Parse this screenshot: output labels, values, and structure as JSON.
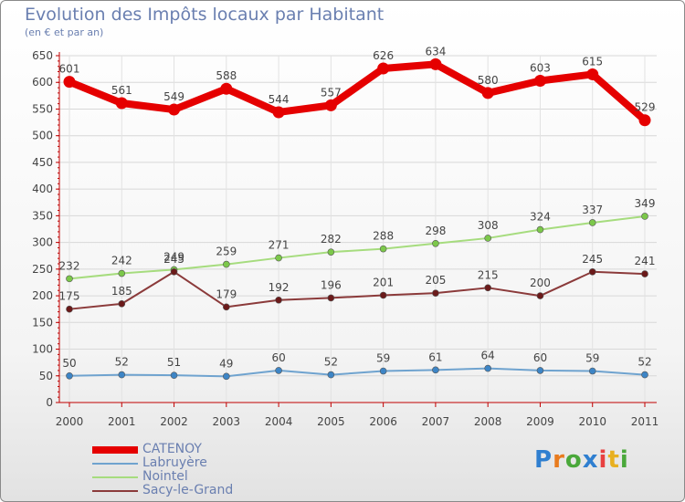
{
  "chart_data": {
    "type": "line",
    "title": "Evolution des Impôts locaux par Habitant",
    "subtitle": "(en € et par an)",
    "xlabel": "",
    "ylabel": "",
    "ylim": [
      0,
      650
    ],
    "y_ticks": [
      0,
      50,
      100,
      150,
      200,
      250,
      300,
      350,
      400,
      450,
      500,
      550,
      600,
      650
    ],
    "grid": true,
    "legend_position": "bottom-left",
    "x": [
      "2000",
      "2001",
      "2002",
      "2003",
      "2004",
      "2005",
      "2006",
      "2007",
      "2008",
      "2009",
      "2010",
      "2011"
    ],
    "series": [
      {
        "name": "CATENOY",
        "color": "#e50000",
        "values": [
          601,
          561,
          549,
          588,
          544,
          557,
          626,
          634,
          580,
          603,
          615,
          529
        ],
        "point_color": "#e50000",
        "width": "thick"
      },
      {
        "name": "Labruyère",
        "color": "#6fa3cf",
        "values": [
          50,
          52,
          51,
          49,
          60,
          52,
          59,
          61,
          64,
          60,
          59,
          52
        ],
        "point_color": "#3d85c6",
        "width": "thin"
      },
      {
        "name": "Nointel",
        "color": "#a6dc7e",
        "values": [
          232,
          242,
          249,
          259,
          271,
          282,
          288,
          298,
          308,
          324,
          337,
          349
        ],
        "point_color": "#7cc84a",
        "width": "thin"
      },
      {
        "name": "Sacy-le-Grand",
        "color": "#8b3a3a",
        "values": [
          175,
          185,
          245,
          179,
          192,
          196,
          201,
          205,
          215,
          200,
          245,
          241
        ],
        "point_color": "#6b1a1a",
        "width": "thin"
      }
    ]
  },
  "logo": {
    "text": "Proxiti"
  }
}
